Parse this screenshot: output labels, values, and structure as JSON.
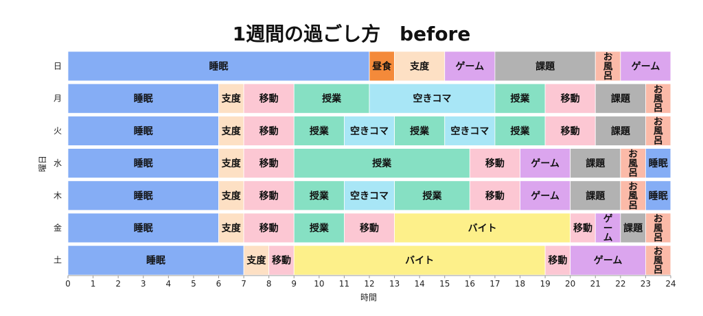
{
  "chart_data": {
    "type": "gantt",
    "title": "1週間の過ごし方　before",
    "xlabel": "時間",
    "ylabel": "曜日",
    "xlim": [
      0,
      24
    ],
    "xticks": [
      0,
      1,
      2,
      3,
      4,
      5,
      6,
      7,
      8,
      9,
      10,
      11,
      12,
      13,
      14,
      15,
      16,
      17,
      18,
      19,
      20,
      21,
      22,
      23,
      24
    ],
    "grid": false,
    "colors": {
      "睡眠": "#85adf5",
      "支度": "#fde0c4",
      "移動": "#fcc7d3",
      "授業": "#86e0c3",
      "空きコマ": "#a8e6f6",
      "課題": "#b2b2b2",
      "ゲーム": "#dba5ee",
      "お風呂": "#fbbaa8",
      "昼食": "#f48a3a",
      "バイト": "#fdf08a"
    },
    "rows": [
      {
        "day": "日",
        "segments": [
          {
            "activity": "睡眠",
            "start": 0,
            "end": 12
          },
          {
            "activity": "昼食",
            "start": 12,
            "end": 13
          },
          {
            "activity": "支度",
            "start": 13,
            "end": 15
          },
          {
            "activity": "ゲーム",
            "start": 15,
            "end": 17
          },
          {
            "activity": "課題",
            "start": 17,
            "end": 21
          },
          {
            "activity": "お風呂",
            "start": 21,
            "end": 22
          },
          {
            "activity": "ゲーム",
            "start": 22,
            "end": 24
          }
        ]
      },
      {
        "day": "月",
        "segments": [
          {
            "activity": "睡眠",
            "start": 0,
            "end": 6
          },
          {
            "activity": "支度",
            "start": 6,
            "end": 7
          },
          {
            "activity": "移動",
            "start": 7,
            "end": 9
          },
          {
            "activity": "授業",
            "start": 9,
            "end": 12
          },
          {
            "activity": "空きコマ",
            "start": 12,
            "end": 17
          },
          {
            "activity": "授業",
            "start": 17,
            "end": 19
          },
          {
            "activity": "移動",
            "start": 19,
            "end": 21
          },
          {
            "activity": "課題",
            "start": 21,
            "end": 23
          },
          {
            "activity": "お風呂",
            "start": 23,
            "end": 24
          }
        ]
      },
      {
        "day": "火",
        "segments": [
          {
            "activity": "睡眠",
            "start": 0,
            "end": 6
          },
          {
            "activity": "支度",
            "start": 6,
            "end": 7
          },
          {
            "activity": "移動",
            "start": 7,
            "end": 9
          },
          {
            "activity": "授業",
            "start": 9,
            "end": 11
          },
          {
            "activity": "空きコマ",
            "start": 11,
            "end": 13
          },
          {
            "activity": "授業",
            "start": 13,
            "end": 15
          },
          {
            "activity": "空きコマ",
            "start": 15,
            "end": 17
          },
          {
            "activity": "授業",
            "start": 17,
            "end": 19
          },
          {
            "activity": "移動",
            "start": 19,
            "end": 21
          },
          {
            "activity": "課題",
            "start": 21,
            "end": 23
          },
          {
            "activity": "お風呂",
            "start": 23,
            "end": 24
          }
        ]
      },
      {
        "day": "水",
        "segments": [
          {
            "activity": "睡眠",
            "start": 0,
            "end": 6
          },
          {
            "activity": "支度",
            "start": 6,
            "end": 7
          },
          {
            "activity": "移動",
            "start": 7,
            "end": 9
          },
          {
            "activity": "授業",
            "start": 9,
            "end": 16
          },
          {
            "activity": "移動",
            "start": 16,
            "end": 18
          },
          {
            "activity": "ゲーム",
            "start": 18,
            "end": 20
          },
          {
            "activity": "課題",
            "start": 20,
            "end": 22
          },
          {
            "activity": "お風呂",
            "start": 22,
            "end": 23
          },
          {
            "activity": "睡眠",
            "start": 23,
            "end": 24
          }
        ]
      },
      {
        "day": "木",
        "segments": [
          {
            "activity": "睡眠",
            "start": 0,
            "end": 6
          },
          {
            "activity": "支度",
            "start": 6,
            "end": 7
          },
          {
            "activity": "移動",
            "start": 7,
            "end": 9
          },
          {
            "activity": "授業",
            "start": 9,
            "end": 11
          },
          {
            "activity": "空きコマ",
            "start": 11,
            "end": 13
          },
          {
            "activity": "授業",
            "start": 13,
            "end": 16
          },
          {
            "activity": "移動",
            "start": 16,
            "end": 18
          },
          {
            "activity": "ゲーム",
            "start": 18,
            "end": 20
          },
          {
            "activity": "課題",
            "start": 20,
            "end": 22
          },
          {
            "activity": "お風呂",
            "start": 22,
            "end": 23
          },
          {
            "activity": "睡眠",
            "start": 23,
            "end": 24
          }
        ]
      },
      {
        "day": "金",
        "segments": [
          {
            "activity": "睡眠",
            "start": 0,
            "end": 6
          },
          {
            "activity": "支度",
            "start": 6,
            "end": 7
          },
          {
            "activity": "移動",
            "start": 7,
            "end": 9
          },
          {
            "activity": "授業",
            "start": 9,
            "end": 11
          },
          {
            "activity": "移動",
            "start": 11,
            "end": 13
          },
          {
            "activity": "バイト",
            "start": 13,
            "end": 20
          },
          {
            "activity": "移動",
            "start": 20,
            "end": 21
          },
          {
            "activity": "ゲーム",
            "start": 21,
            "end": 22
          },
          {
            "activity": "課題",
            "start": 22,
            "end": 23
          },
          {
            "activity": "お風呂",
            "start": 23,
            "end": 24
          }
        ]
      },
      {
        "day": "土",
        "segments": [
          {
            "activity": "睡眠",
            "start": 0,
            "end": 7
          },
          {
            "activity": "支度",
            "start": 7,
            "end": 8
          },
          {
            "activity": "移動",
            "start": 8,
            "end": 9
          },
          {
            "activity": "バイト",
            "start": 9,
            "end": 19
          },
          {
            "activity": "移動",
            "start": 19,
            "end": 20
          },
          {
            "activity": "ゲーム",
            "start": 20,
            "end": 23
          },
          {
            "activity": "お風呂",
            "start": 23,
            "end": 24
          }
        ]
      }
    ]
  }
}
